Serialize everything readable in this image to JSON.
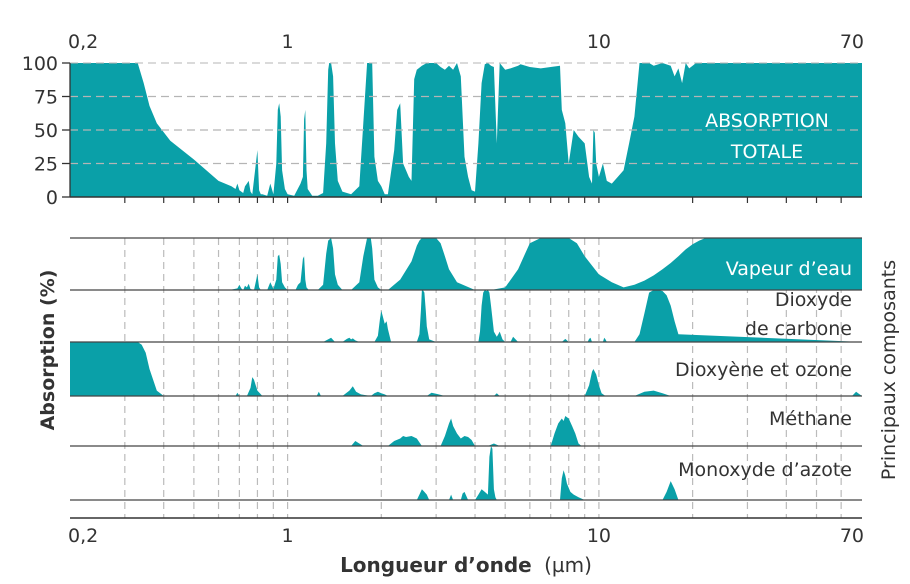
{
  "chart_data": {
    "type": "area",
    "xscale": "log",
    "xlim": [
      0.2,
      70
    ],
    "xtick_values": [
      0.2,
      1,
      10,
      70
    ],
    "xtick_labels": [
      "0,2",
      "1",
      "10",
      "70"
    ],
    "minor_gridlines": [
      0.3,
      0.4,
      0.5,
      0.6,
      0.7,
      0.8,
      0.9,
      2,
      3,
      4,
      5,
      6,
      7,
      8,
      9,
      20,
      30,
      40,
      50,
      60
    ],
    "xlabel_bold": "Longueur d’onde",
    "xlabel_unit": "(µm)",
    "ylabel": "Absorption (%)",
    "ylabel_right": "Principaux composants",
    "top_panel": {
      "label_line1": "ABSORPTION",
      "label_line2": "TOTALE",
      "ylim": [
        0,
        100
      ],
      "ytick_labels": [
        "0",
        "25",
        "50",
        "75",
        "100"
      ],
      "grid": "dashed horizontal at 25, 50, 75",
      "x": [
        0.2,
        0.33,
        0.345,
        0.36,
        0.38,
        0.42,
        0.5,
        0.6,
        0.66,
        0.68,
        0.69,
        0.7,
        0.71,
        0.72,
        0.73,
        0.74,
        0.75,
        0.76,
        0.77,
        0.8,
        0.81,
        0.82,
        0.83,
        0.86,
        0.88,
        0.9,
        0.92,
        0.93,
        0.94,
        0.95,
        0.96,
        0.98,
        1.0,
        1.05,
        1.1,
        1.12,
        1.13,
        1.14,
        1.15,
        1.16,
        1.2,
        1.25,
        1.3,
        1.33,
        1.35,
        1.36,
        1.38,
        1.4,
        1.42,
        1.45,
        1.5,
        1.6,
        1.7,
        1.75,
        1.8,
        1.82,
        1.85,
        1.87,
        1.9,
        1.95,
        2.0,
        2.05,
        2.1,
        2.2,
        2.25,
        2.3,
        2.35,
        2.4,
        2.45,
        2.5,
        2.55,
        2.6,
        2.7,
        2.8,
        2.9,
        3.0,
        3.1,
        3.2,
        3.3,
        3.4,
        3.5,
        3.6,
        3.7,
        3.8,
        3.9,
        4.0,
        4.1,
        4.2,
        4.3,
        4.4,
        4.5,
        4.6,
        4.7,
        4.8,
        5.0,
        5.2,
        5.5,
        5.6,
        6.0,
        6.5,
        7.0,
        7.5,
        7.6,
        7.8,
        8.0,
        8.3,
        8.6,
        9.0,
        9.3,
        9.5,
        9.6,
        9.7,
        9.8,
        10.0,
        10.3,
        10.6,
        11.0,
        11.5,
        12.0,
        12.5,
        13.0,
        13.5,
        14.0,
        14.5,
        15.0,
        16.0,
        17.0,
        17.5,
        18.0,
        18.5,
        19.0,
        19.5,
        20.0,
        20.5,
        21.0,
        22.0,
        25.0,
        30.0,
        40.0,
        50.0,
        60.0,
        70.0
      ],
      "y": [
        100,
        100,
        85,
        68,
        55,
        42,
        28,
        12,
        8,
        6,
        10,
        5,
        4,
        3,
        8,
        10,
        12,
        4,
        2,
        35,
        5,
        2,
        2,
        1,
        10,
        2,
        25,
        65,
        70,
        60,
        20,
        6,
        2,
        1,
        10,
        15,
        58,
        65,
        20,
        6,
        1,
        1,
        3,
        40,
        95,
        100,
        100,
        90,
        40,
        12,
        4,
        2,
        8,
        55,
        100,
        100,
        100,
        100,
        30,
        12,
        8,
        2,
        2,
        35,
        65,
        70,
        25,
        20,
        15,
        12,
        88,
        95,
        98,
        100,
        100,
        100,
        97,
        95,
        98,
        95,
        100,
        90,
        30,
        15,
        5,
        4,
        40,
        85,
        99,
        100,
        98,
        97,
        40,
        100,
        95,
        96,
        98,
        99,
        97,
        96,
        97,
        98,
        65,
        55,
        25,
        50,
        45,
        40,
        15,
        10,
        50,
        48,
        25,
        15,
        25,
        12,
        10,
        15,
        20,
        40,
        60,
        100,
        100,
        100,
        98,
        100,
        98,
        90,
        96,
        85,
        100,
        96,
        98,
        100,
        100,
        100,
        100,
        100,
        100,
        100,
        100,
        100
      ]
    },
    "series": [
      {
        "name": "Vapeur d’eau",
        "x": [
          0.2,
          0.65,
          0.69,
          0.7,
          0.71,
          0.72,
          0.73,
          0.74,
          0.75,
          0.76,
          0.78,
          0.8,
          0.81,
          0.82,
          0.86,
          0.88,
          0.9,
          0.92,
          0.93,
          0.94,
          0.95,
          0.96,
          0.98,
          1.0,
          1.06,
          1.08,
          1.1,
          1.12,
          1.13,
          1.14,
          1.15,
          1.17,
          1.2,
          1.25,
          1.3,
          1.33,
          1.35,
          1.38,
          1.4,
          1.42,
          1.45,
          1.5,
          1.6,
          1.7,
          1.75,
          1.8,
          1.82,
          1.85,
          1.87,
          1.9,
          1.95,
          2.0,
          2.1,
          2.3,
          2.5,
          2.6,
          2.65,
          2.7,
          2.8,
          3.0,
          3.1,
          3.2,
          3.3,
          3.5,
          4.0,
          4.5,
          5.0,
          5.5,
          6.0,
          6.5,
          7.0,
          7.5,
          8.0,
          8.5,
          9.0,
          10.0,
          11.0,
          12.0,
          13.0,
          14.0,
          15.0,
          16.0,
          17.0,
          18.0,
          19.0,
          20.0,
          21.0,
          22.0,
          25.0,
          30.0,
          50.0,
          70.0
        ],
        "y": [
          0,
          0,
          3,
          10,
          3,
          0,
          8,
          5,
          12,
          2,
          0,
          30,
          5,
          0,
          0,
          15,
          2,
          20,
          65,
          68,
          50,
          15,
          5,
          0,
          0,
          10,
          15,
          60,
          65,
          20,
          5,
          0,
          0,
          0,
          10,
          70,
          95,
          100,
          80,
          30,
          10,
          0,
          0,
          15,
          65,
          100,
          100,
          100,
          80,
          20,
          5,
          0,
          0,
          20,
          55,
          85,
          95,
          100,
          100,
          100,
          90,
          65,
          40,
          15,
          0,
          0,
          5,
          40,
          90,
          100,
          100,
          100,
          100,
          90,
          65,
          30,
          15,
          5,
          10,
          18,
          28,
          40,
          52,
          65,
          78,
          88,
          95,
          100,
          100,
          100,
          100,
          100
        ]
      },
      {
        "name_line1": "Dioxyde",
        "name_line2": "de carbone",
        "x": [
          0.2,
          1.3,
          1.38,
          1.42,
          1.5,
          1.55,
          1.58,
          1.6,
          1.62,
          1.65,
          1.7,
          1.9,
          1.95,
          1.98,
          2.0,
          2.02,
          2.05,
          2.08,
          2.1,
          2.15,
          2.6,
          2.65,
          2.68,
          2.7,
          2.72,
          2.75,
          2.78,
          2.8,
          2.85,
          3.0,
          4.1,
          4.15,
          4.2,
          4.25,
          4.3,
          4.35,
          4.4,
          4.45,
          4.5,
          4.6,
          4.7,
          4.75,
          4.8,
          4.9,
          5.0,
          5.2,
          5.3,
          5.5,
          7.6,
          7.8,
          8.0,
          9.2,
          9.3,
          9.4,
          9.5,
          10.3,
          10.4,
          10.5,
          10.6,
          11.0,
          13.0,
          13.5,
          14.0,
          14.5,
          15.0,
          15.5,
          16.0,
          16.5,
          17.0,
          17.5,
          18.0,
          70.0
        ],
        "y": [
          0,
          0,
          8,
          0,
          0,
          6,
          8,
          5,
          7,
          3,
          0,
          0,
          12,
          45,
          60,
          50,
          35,
          40,
          25,
          0,
          0,
          15,
          60,
          100,
          100,
          95,
          60,
          30,
          5,
          0,
          0,
          20,
          70,
          95,
          100,
          98,
          100,
          95,
          70,
          20,
          10,
          15,
          20,
          5,
          0,
          0,
          10,
          0,
          0,
          6,
          0,
          0,
          6,
          8,
          0,
          0,
          8,
          5,
          0,
          0,
          0,
          15,
          55,
          95,
          100,
          100,
          98,
          90,
          70,
          40,
          15,
          0
        ]
      },
      {
        "name": "Dioxyène et ozone",
        "x": [
          0.2,
          0.29,
          0.3,
          0.31,
          0.32,
          0.33,
          0.34,
          0.35,
          0.36,
          0.38,
          0.4,
          0.68,
          0.69,
          0.7,
          0.74,
          0.76,
          0.77,
          0.78,
          0.8,
          0.83,
          1.24,
          1.26,
          1.28,
          1.5,
          1.58,
          1.62,
          1.66,
          1.72,
          1.85,
          1.9,
          1.95,
          2.0,
          2.05,
          2.1,
          2.8,
          2.9,
          3.0,
          3.1,
          3.2,
          4.6,
          4.7,
          4.8,
          9.0,
          9.3,
          9.5,
          9.6,
          9.8,
          10.0,
          10.2,
          10.5,
          13.0,
          14.0,
          15.0,
          16.0,
          17.0,
          65.0,
          67.0,
          68.0,
          70.0
        ],
        "y": [
          100,
          100,
          100,
          100,
          100,
          100,
          95,
          80,
          50,
          10,
          0,
          0,
          6,
          0,
          0,
          15,
          35,
          30,
          10,
          0,
          0,
          8,
          0,
          0,
          10,
          18,
          8,
          3,
          0,
          5,
          8,
          5,
          3,
          0,
          0,
          6,
          4,
          2,
          0,
          0,
          5,
          0,
          0,
          20,
          45,
          50,
          40,
          20,
          5,
          0,
          0,
          8,
          10,
          5,
          0,
          0,
          8,
          5,
          0
        ]
      },
      {
        "name": "Méthane",
        "x": [
          0.2,
          1.6,
          1.65,
          1.7,
          1.75,
          2.1,
          2.2,
          2.3,
          2.35,
          2.4,
          2.5,
          2.6,
          2.7,
          3.1,
          3.2,
          3.3,
          3.35,
          3.4,
          3.5,
          3.6,
          3.7,
          3.8,
          3.9,
          4.0,
          4.4,
          4.6,
          4.8,
          6.0,
          7.0,
          7.2,
          7.4,
          7.6,
          7.7,
          7.8,
          8.0,
          8.2,
          8.4,
          8.6,
          8.8,
          70.0
        ],
        "y": [
          0,
          0,
          10,
          5,
          0,
          0,
          10,
          15,
          20,
          18,
          20,
          15,
          0,
          0,
          20,
          45,
          55,
          40,
          25,
          15,
          20,
          18,
          12,
          0,
          0,
          5,
          0,
          0,
          0,
          25,
          45,
          55,
          50,
          60,
          55,
          40,
          25,
          5,
          0,
          0
        ]
      },
      {
        "name": "Monoxyde d’azote",
        "x": [
          0.2,
          2.6,
          2.65,
          2.7,
          2.75,
          2.8,
          2.85,
          3.3,
          3.35,
          3.4,
          3.6,
          3.65,
          3.7,
          3.8,
          4.0,
          4.1,
          4.2,
          4.3,
          4.4,
          4.45,
          4.5,
          4.55,
          4.6,
          4.65,
          4.7,
          4.8,
          7.5,
          7.6,
          7.7,
          7.8,
          7.9,
          8.1,
          8.3,
          8.6,
          9.0,
          16.0,
          16.5,
          17.0,
          17.5,
          18.0,
          70.0
        ],
        "y": [
          0,
          0,
          10,
          20,
          15,
          10,
          0,
          0,
          10,
          0,
          0,
          12,
          15,
          0,
          0,
          10,
          20,
          15,
          10,
          80,
          100,
          95,
          20,
          5,
          0,
          0,
          0,
          40,
          55,
          45,
          30,
          15,
          10,
          5,
          0,
          0,
          15,
          35,
          20,
          0,
          0
        ]
      }
    ]
  },
  "colors": {
    "fill": "#0aa0a8",
    "axis": "#333333",
    "grid": "#bbbbbb",
    "panel_text_inverse": "#ffffff"
  }
}
